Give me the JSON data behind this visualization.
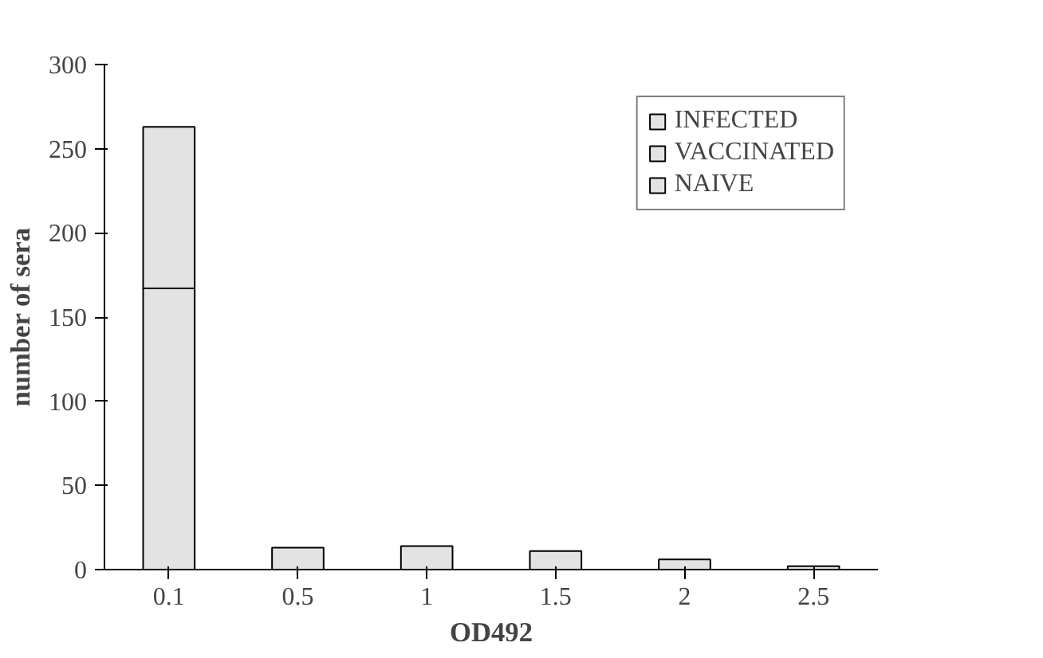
{
  "chart_data": {
    "type": "bar",
    "stacked": true,
    "xlabel": "OD492",
    "ylabel": "number of sera",
    "categories": [
      "0.1",
      "0.5",
      "1",
      "1.5",
      "2",
      "2.5"
    ],
    "series": [
      {
        "name": "NAIVE",
        "color": "#e3e3e3",
        "values": [
          167,
          null,
          null,
          null,
          null,
          null
        ]
      },
      {
        "name": "VACCINATED",
        "color": "#e3e3e3",
        "values": [
          96,
          null,
          null,
          null,
          null,
          null
        ]
      },
      {
        "name": "INFECTED",
        "color": "#e3e3e3",
        "values": [
          null,
          13,
          14,
          11,
          6,
          2
        ]
      }
    ],
    "ylim": [
      0,
      300
    ],
    "yticks": [
      0,
      50,
      100,
      150,
      200,
      250,
      300
    ],
    "grid": false,
    "legend": "top right"
  }
}
